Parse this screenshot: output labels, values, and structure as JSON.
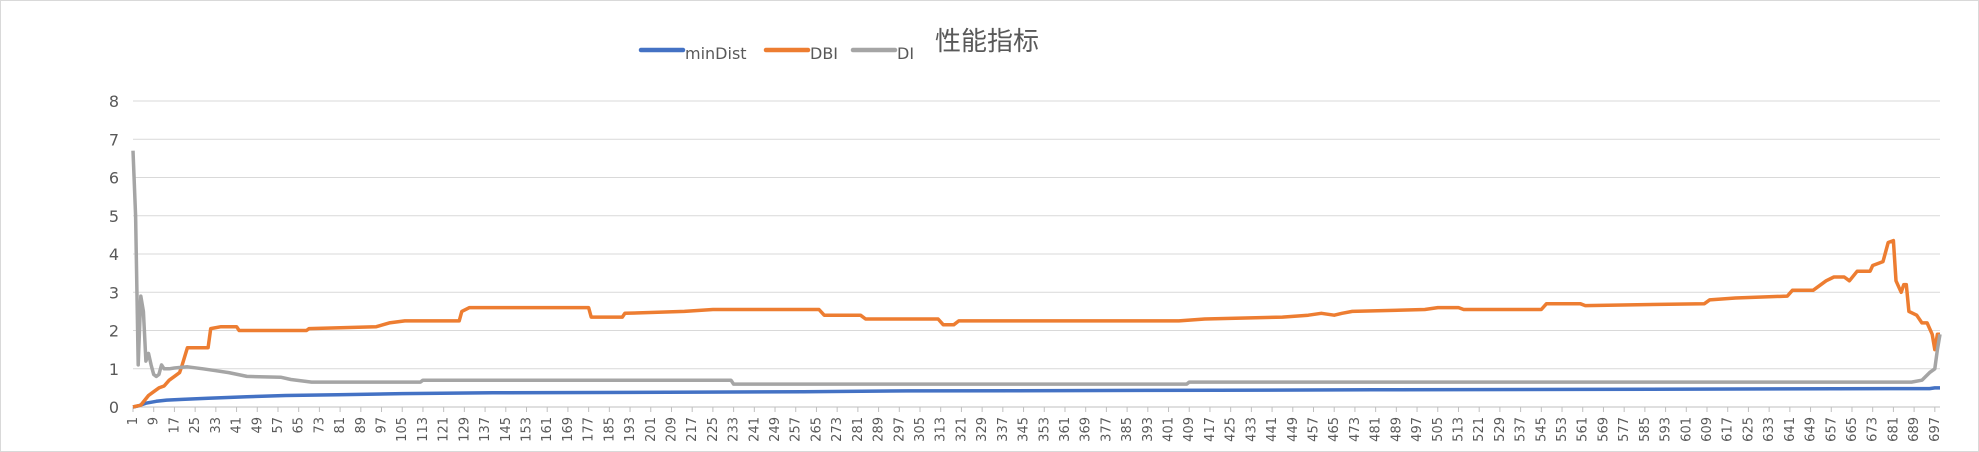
{
  "chart_data": {
    "type": "line",
    "title": "性能指标",
    "xlabel": "",
    "ylabel": "",
    "legend_position": "top",
    "grid": true,
    "x_range": [
      1,
      699
    ],
    "x_tick_start": 1,
    "x_tick_step": 8,
    "x_tick_end": 697,
    "ylim": [
      0,
      8
    ],
    "y_ticks": [
      0,
      1,
      2,
      3,
      4,
      5,
      6,
      7,
      8
    ],
    "series": [
      {
        "name": "minDist",
        "color": "#4472C4",
        "points": [
          [
            1,
            0
          ],
          [
            3,
            0.03
          ],
          [
            6,
            0.1
          ],
          [
            10,
            0.15
          ],
          [
            14,
            0.18
          ],
          [
            20,
            0.2
          ],
          [
            30,
            0.23
          ],
          [
            45,
            0.27
          ],
          [
            60,
            0.3
          ],
          [
            80,
            0.32
          ],
          [
            105,
            0.35
          ],
          [
            140,
            0.37
          ],
          [
            180,
            0.38
          ],
          [
            220,
            0.39
          ],
          [
            260,
            0.4
          ],
          [
            300,
            0.42
          ],
          [
            360,
            0.43
          ],
          [
            420,
            0.44
          ],
          [
            480,
            0.45
          ],
          [
            560,
            0.46
          ],
          [
            620,
            0.47
          ],
          [
            680,
            0.48
          ],
          [
            695,
            0.48
          ],
          [
            697,
            0.5
          ],
          [
            699,
            0.5
          ]
        ]
      },
      {
        "name": "DBI",
        "color": "#ED7D31",
        "points": [
          [
            1,
            0
          ],
          [
            4,
            0.05
          ],
          [
            7,
            0.3
          ],
          [
            9,
            0.4
          ],
          [
            11,
            0.5
          ],
          [
            13,
            0.55
          ],
          [
            15,
            0.7
          ],
          [
            17,
            0.8
          ],
          [
            19,
            0.9
          ],
          [
            20,
            1.1
          ],
          [
            22,
            1.55
          ],
          [
            30,
            1.55
          ],
          [
            31,
            2.05
          ],
          [
            35,
            2.1
          ],
          [
            41,
            2.1
          ],
          [
            42,
            2.0
          ],
          [
            68,
            2.0
          ],
          [
            69,
            2.05
          ],
          [
            95,
            2.1
          ],
          [
            100,
            2.2
          ],
          [
            106,
            2.25
          ],
          [
            127,
            2.25
          ],
          [
            128,
            2.5
          ],
          [
            131,
            2.6
          ],
          [
            177,
            2.6
          ],
          [
            178,
            2.35
          ],
          [
            190,
            2.35
          ],
          [
            191,
            2.45
          ],
          [
            214,
            2.5
          ],
          [
            225,
            2.55
          ],
          [
            266,
            2.55
          ],
          [
            268,
            2.4
          ],
          [
            282,
            2.4
          ],
          [
            284,
            2.3
          ],
          [
            312,
            2.3
          ],
          [
            314,
            2.15
          ],
          [
            318,
            2.15
          ],
          [
            320,
            2.25
          ],
          [
            405,
            2.25
          ],
          [
            415,
            2.3
          ],
          [
            445,
            2.35
          ],
          [
            455,
            2.4
          ],
          [
            460,
            2.45
          ],
          [
            465,
            2.4
          ],
          [
            468,
            2.45
          ],
          [
            472,
            2.5
          ],
          [
            500,
            2.55
          ],
          [
            505,
            2.6
          ],
          [
            513,
            2.6
          ],
          [
            515,
            2.55
          ],
          [
            545,
            2.55
          ],
          [
            547,
            2.7
          ],
          [
            560,
            2.7
          ],
          [
            562,
            2.65
          ],
          [
            608,
            2.7
          ],
          [
            610,
            2.8
          ],
          [
            620,
            2.85
          ],
          [
            640,
            2.9
          ],
          [
            642,
            3.05
          ],
          [
            650,
            3.05
          ],
          [
            655,
            3.3
          ],
          [
            658,
            3.4
          ],
          [
            662,
            3.4
          ],
          [
            664,
            3.3
          ],
          [
            667,
            3.55
          ],
          [
            672,
            3.55
          ],
          [
            673,
            3.7
          ],
          [
            677,
            3.8
          ],
          [
            679,
            4.3
          ],
          [
            681,
            4.35
          ],
          [
            682,
            3.3
          ],
          [
            684,
            3.0
          ],
          [
            685,
            3.2
          ],
          [
            686,
            3.2
          ],
          [
            687,
            2.5
          ],
          [
            690,
            2.4
          ],
          [
            692,
            2.2
          ],
          [
            694,
            2.2
          ],
          [
            696,
            1.9
          ],
          [
            697,
            1.5
          ],
          [
            698,
            1.9
          ],
          [
            699,
            1.9
          ]
        ]
      },
      {
        "name": "DI",
        "color": "#A5A5A5",
        "points": [
          [
            1,
            6.7
          ],
          [
            2,
            5.0
          ],
          [
            3,
            1.1
          ],
          [
            4,
            2.9
          ],
          [
            5,
            2.5
          ],
          [
            6,
            1.2
          ],
          [
            7,
            1.4
          ],
          [
            8,
            1.1
          ],
          [
            9,
            0.85
          ],
          [
            10,
            0.8
          ],
          [
            11,
            0.85
          ],
          [
            12,
            1.1
          ],
          [
            13,
            1.0
          ],
          [
            15,
            1.0
          ],
          [
            17,
            1.02
          ],
          [
            22,
            1.05
          ],
          [
            28,
            1.0
          ],
          [
            33,
            0.95
          ],
          [
            38,
            0.9
          ],
          [
            45,
            0.8
          ],
          [
            58,
            0.78
          ],
          [
            62,
            0.72
          ],
          [
            70,
            0.65
          ],
          [
            112,
            0.65
          ],
          [
            113,
            0.7
          ],
          [
            232,
            0.7
          ],
          [
            233,
            0.6
          ],
          [
            408,
            0.6
          ],
          [
            409,
            0.65
          ],
          [
            688,
            0.65
          ],
          [
            692,
            0.7
          ],
          [
            695,
            0.9
          ],
          [
            697,
            1.0
          ],
          [
            698,
            1.5
          ],
          [
            699,
            1.9
          ]
        ]
      }
    ]
  }
}
